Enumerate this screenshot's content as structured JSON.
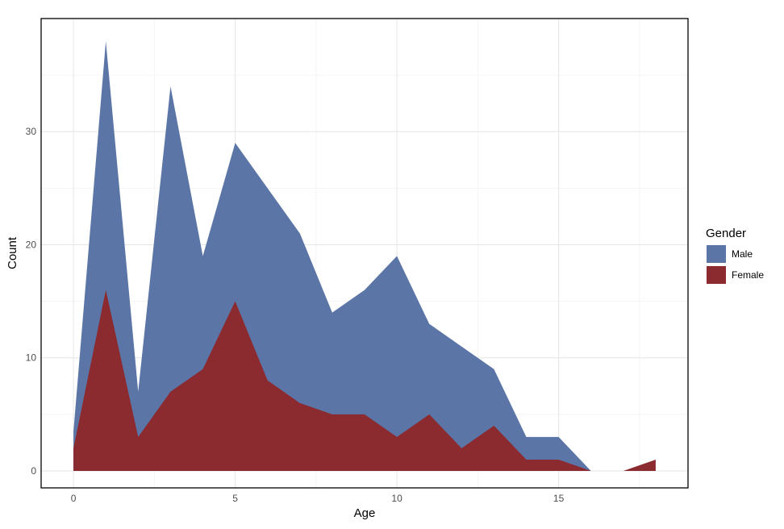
{
  "chart_data": {
    "type": "area",
    "xlabel": "Age",
    "ylabel": "Count",
    "xlim": [
      -1.0,
      19.0
    ],
    "ylim": [
      -1.5,
      40
    ],
    "x_ticks": [
      0,
      5,
      10,
      15
    ],
    "y_ticks": [
      0,
      10,
      20,
      30
    ],
    "grid": true,
    "legend": {
      "title": "Gender",
      "position": "right"
    },
    "series": [
      {
        "name": "Male",
        "color": "#5b75a6",
        "x": [
          0,
          1,
          2,
          3,
          4,
          5,
          6,
          7,
          8,
          9,
          10,
          11,
          12,
          13,
          14,
          15,
          16
        ],
        "values": [
          3.5,
          38,
          7,
          34,
          19,
          29,
          25,
          21,
          14,
          16,
          19,
          13,
          11,
          9,
          3,
          3,
          0
        ]
      },
      {
        "name": "Female",
        "color": "#8b2a2f",
        "x": [
          0,
          1,
          2,
          3,
          4,
          5,
          6,
          7,
          8,
          9,
          10,
          11,
          12,
          13,
          14,
          15,
          16,
          17,
          18
        ],
        "values": [
          2,
          16,
          3,
          7,
          9,
          15,
          8,
          6,
          5,
          5,
          3,
          5,
          2,
          4,
          1,
          1,
          0,
          0,
          1
        ]
      }
    ]
  }
}
